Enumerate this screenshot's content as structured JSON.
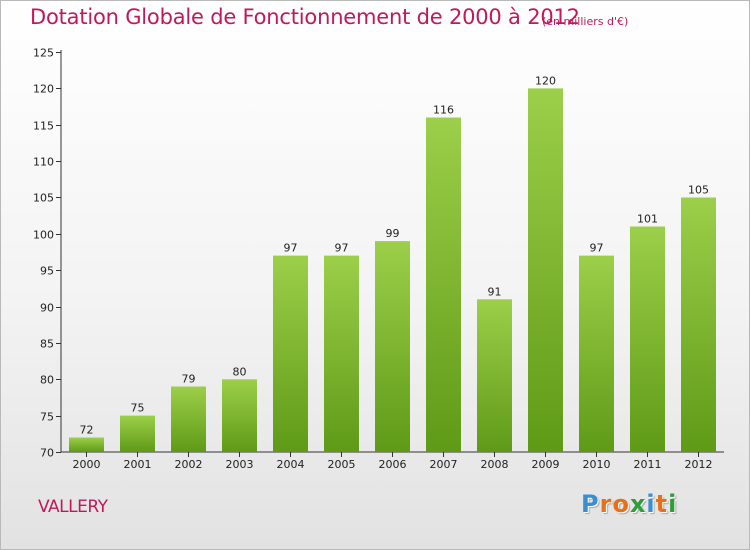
{
  "header": {
    "title": "Dotation Globale de Fonctionnement de 2000 à 2012",
    "subtitle": "(en milliers d'€)"
  },
  "footer": {
    "commune": "VALLERY",
    "logo_text": "Proxiti"
  },
  "colors": {
    "title": "#c2185b",
    "bar_light": "#9ccf4a",
    "bar_dark": "#5f9a17",
    "logo_letters": [
      "#3a8fd0",
      "#e8701a",
      "#e8701a",
      "#2f9e3a",
      "#3a8fd0",
      "#e8701a",
      "#2f9e3a"
    ]
  },
  "chart_data": {
    "type": "bar",
    "title": "Dotation Globale de Fonctionnement de 2000 à 2012",
    "subtitle": "(en milliers d'€)",
    "categories": [
      "2000",
      "2001",
      "2002",
      "2003",
      "2004",
      "2005",
      "2006",
      "2007",
      "2008",
      "2009",
      "2010",
      "2011",
      "2012"
    ],
    "values": [
      72,
      75,
      79,
      80,
      97,
      97,
      99,
      116,
      91,
      120,
      97,
      101,
      105
    ],
    "xlabel": "",
    "ylabel": "",
    "ylim": [
      70,
      125
    ],
    "yticks": [
      70,
      75,
      80,
      85,
      90,
      95,
      100,
      105,
      110,
      115,
      120,
      125
    ],
    "grid": false,
    "legend": "none"
  }
}
